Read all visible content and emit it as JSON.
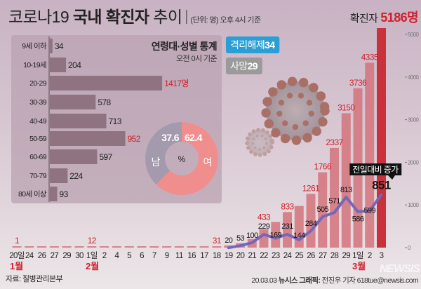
{
  "header": {
    "title_light": "코로나19",
    "title_bold": "국내 확진자",
    "title_tail": "추이",
    "unit_note": "(단위: 명) 오후 4시 기준",
    "total_label": "확진자",
    "total_value": "5186명"
  },
  "badges": {
    "released": {
      "label": "격리해제",
      "value": "34",
      "color": "#2a9fd6"
    },
    "deaths": {
      "label": "사망",
      "value": "29",
      "color": "#9a9a9a"
    }
  },
  "age_panel": {
    "title": "연령대·성별 통계",
    "subtitle": "오전 0시 기준"
  },
  "callout": "전일대비 증가",
  "months": {
    "jan": "1월",
    "feb": "2월",
    "mar": "3월"
  },
  "footer": {
    "source": "자료: 질병관리본부",
    "credit_date": "20.03.03",
    "credit_org": "뉴시스 그래픽:",
    "credit_author": "전진우 기자 618tue@newsis.com",
    "logo": "NEWSIS"
  },
  "colors": {
    "bar": "#d4737b",
    "bar_latest": "#c9323d",
    "line": "#7766b8",
    "highlight_text": "#d0202c",
    "female": "#f08e8e",
    "male": "#a39aae",
    "age_bar": "#8f7381"
  },
  "chart_data": [
    {
      "type": "bar",
      "title": "코로나19 국내 확진자 추이",
      "categories": [
        "20일",
        "24",
        "26",
        "27",
        "29",
        "30",
        "1일",
        "2",
        "4",
        "5",
        "6",
        "7",
        "9",
        "11",
        "16",
        "17",
        "18",
        "19",
        "20",
        "21",
        "22",
        "23",
        "24",
        "25",
        "26",
        "27",
        "28",
        "29",
        "1일",
        "2",
        "3"
      ],
      "series": [
        {
          "name": "확진자",
          "values": [
            1,
            2,
            3,
            4,
            4,
            6,
            12,
            15,
            16,
            19,
            23,
            24,
            27,
            28,
            29,
            30,
            31,
            51,
            104,
            204,
            433,
            602,
            833,
            977,
            1261,
            1766,
            2337,
            3150,
            3736,
            4335,
            5186
          ]
        },
        {
          "name": "전일대비 증가",
          "type": "line",
          "values": [
            null,
            null,
            null,
            null,
            null,
            null,
            null,
            null,
            null,
            null,
            null,
            null,
            null,
            null,
            null,
            null,
            null,
            20,
            53,
            100,
            229,
            169,
            231,
            144,
            284,
            505,
            571,
            813,
            586,
            599,
            851
          ]
        }
      ],
      "labelled_totals": [
        {
          "index": 0,
          "text": "1"
        },
        {
          "index": 6,
          "text": "12"
        },
        {
          "index": 16,
          "text": "31"
        },
        {
          "index": 20,
          "text": "433"
        },
        {
          "index": 22,
          "text": "833"
        },
        {
          "index": 24,
          "text": "1261"
        },
        {
          "index": 25,
          "text": "1766"
        },
        {
          "index": 26,
          "text": "2337"
        },
        {
          "index": 27,
          "text": "3150"
        },
        {
          "index": 28,
          "text": "3736"
        },
        {
          "index": 29,
          "text": "4335"
        }
      ],
      "yticks": [
        "0",
        "1000",
        "2000",
        "3000",
        "4000",
        "5000"
      ],
      "ylim": [
        0,
        5200
      ],
      "grid": false
    },
    {
      "type": "bar",
      "orientation": "horizontal",
      "title": "연령대·성별 통계",
      "categories": [
        "9세 이하",
        "10-19세",
        "20-29",
        "30-39",
        "40-49",
        "50-59",
        "60-69",
        "70-79",
        "80세 이상"
      ],
      "values": [
        34,
        204,
        1417,
        578,
        713,
        952,
        597,
        224,
        93
      ],
      "value_labels": [
        "34",
        "204",
        "1417명",
        "578",
        "713",
        "952",
        "597",
        "224",
        "93"
      ],
      "highlighted": [
        2,
        5
      ]
    },
    {
      "type": "pie",
      "center_label": "%",
      "slices": [
        {
          "name": "여",
          "value": 62.4,
          "label": "62.4"
        },
        {
          "name": "남",
          "value": 37.6,
          "label": "37.6"
        }
      ]
    }
  ]
}
